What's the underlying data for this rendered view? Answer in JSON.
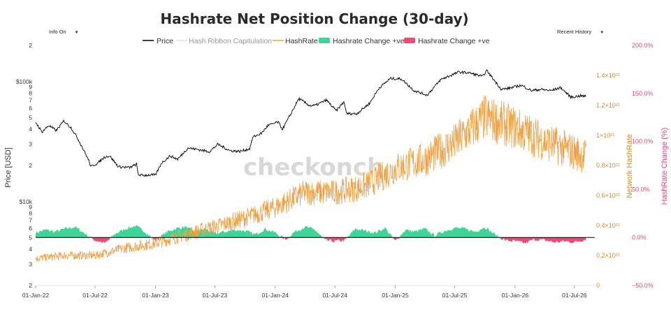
{
  "controls": {
    "info_dropdown": "Info On",
    "history_dropdown": "Recent History",
    "caret": "▼"
  },
  "watermark": "checkonch",
  "colors": {
    "price": "#000000",
    "hashrate": "#f0a040",
    "capitulation": "#f8d0dc",
    "change_pos": "#3dd598",
    "change_neg": "#f04a74",
    "right_axis_1": "#e08a1e",
    "right_axis_2": "#e04a7a"
  },
  "chart_data": {
    "type": "line",
    "title": "Hashrate Net Position Change (30-day)",
    "legend": {
      "placement": "top-center",
      "entries": [
        "Price",
        "Hash Ribbon Capitulation",
        "HashRate",
        "Hashrate Change +ve",
        "Hashrate Change +ve"
      ]
    },
    "x_ticks": [
      "01-Jan-22",
      "01-Jul-22",
      "01-Jan-23",
      "01-Jul-23",
      "01-Jan-24",
      "01-Jul-24",
      "01-Jan-25",
      "01-Jul-25",
      "01-Jan-26",
      "01-Jul-26"
    ],
    "x_range": [
      "2022-01-01",
      "2026-09-01"
    ],
    "y_left": {
      "label": "Price [USD]",
      "scale": "log",
      "range": [
        2000,
        200000
      ],
      "ticks": [
        {
          "v": 2000,
          "t": "2"
        },
        {
          "v": 3000,
          "t": "3"
        },
        {
          "v": 4000,
          "t": "4"
        },
        {
          "v": 5000,
          "t": "5"
        },
        {
          "v": 6000,
          "t": "6"
        },
        {
          "v": 7000,
          "t": "7"
        },
        {
          "v": 8000,
          "t": "8"
        },
        {
          "v": 9000,
          "t": "9"
        },
        {
          "v": 10000,
          "t": "$10k"
        },
        {
          "v": 20000,
          "t": "2"
        },
        {
          "v": 30000,
          "t": "3"
        },
        {
          "v": 40000,
          "t": "4"
        },
        {
          "v": 50000,
          "t": "5"
        },
        {
          "v": 60000,
          "t": "6"
        },
        {
          "v": 70000,
          "t": "7"
        },
        {
          "v": 80000,
          "t": "8"
        },
        {
          "v": 90000,
          "t": "9"
        },
        {
          "v": 100000,
          "t": "$100k"
        },
        {
          "v": 200000,
          "t": "2"
        }
      ]
    },
    "y_right_hashrate": {
      "label": "Network HashRate",
      "range": [
        0,
        1.6
      ],
      "unit": "×10^21",
      "ticks": [
        {
          "v": 0,
          "t": "0"
        },
        {
          "v": 0.2,
          "t": "0.2×10²¹"
        },
        {
          "v": 0.4,
          "t": "0.4×10²¹"
        },
        {
          "v": 0.6,
          "t": "0.6×10²¹"
        },
        {
          "v": 0.8,
          "t": "0.8×10²¹"
        },
        {
          "v": 1.0,
          "t": "1×10²¹"
        },
        {
          "v": 1.2,
          "t": "1.2×10²¹"
        },
        {
          "v": 1.4,
          "t": "1.4×10²¹"
        }
      ]
    },
    "y_right_change": {
      "label": "HashRate Change (%)",
      "range": [
        -50,
        200
      ],
      "ticks": [
        {
          "v": 200,
          "t": "200.0%"
        },
        {
          "v": 150,
          "t": "150.0%"
        },
        {
          "v": 100,
          "t": "100.0%"
        },
        {
          "v": 50,
          "t": "50.0%"
        },
        {
          "v": 0,
          "t": "0.0%"
        },
        {
          "v": -50,
          "t": "−50.0%"
        }
      ]
    },
    "series": [
      {
        "name": "Price",
        "axis": "left",
        "x": [
          "2022-01-01",
          "2022-01-20",
          "2022-02-10",
          "2022-03-05",
          "2022-03-28",
          "2022-04-20",
          "2022-05-08",
          "2022-05-20",
          "2022-06-12",
          "2022-06-18",
          "2022-07-10",
          "2022-07-30",
          "2022-08-15",
          "2022-09-10",
          "2022-10-15",
          "2022-11-05",
          "2022-11-09",
          "2022-11-25",
          "2022-12-20",
          "2023-01-01",
          "2023-01-20",
          "2023-02-15",
          "2023-03-10",
          "2023-04-10",
          "2023-05-15",
          "2023-06-15",
          "2023-07-10",
          "2023-08-17",
          "2023-09-15",
          "2023-10-15",
          "2023-10-25",
          "2023-11-20",
          "2023-12-10",
          "2024-01-10",
          "2024-01-23",
          "2024-02-15",
          "2024-03-13",
          "2024-04-15",
          "2024-05-01",
          "2024-06-05",
          "2024-07-05",
          "2024-07-29",
          "2024-08-05",
          "2024-09-06",
          "2024-10-15",
          "2024-11-12",
          "2024-12-17",
          "2025-01-20",
          "2025-02-27",
          "2025-04-08",
          "2025-05-20",
          "2025-07-14",
          "2025-08-14",
          "2025-09-25",
          "2025-10-06",
          "2025-11-20",
          "2025-12-15",
          "2026-01-20",
          "2026-02-20",
          "2026-03-20",
          "2026-04-20",
          "2026-05-20",
          "2026-06-20",
          "2026-07-20",
          "2026-08-05"
        ],
        "y": [
          46000,
          38000,
          43000,
          39000,
          47000,
          41000,
          34000,
          29500,
          22000,
          19500,
          21000,
          23500,
          24000,
          19500,
          19200,
          20500,
          16800,
          16500,
          16700,
          16600,
          21000,
          24000,
          22500,
          28000,
          27000,
          26000,
          30000,
          26500,
          26200,
          27500,
          34500,
          37000,
          43000,
          46000,
          40000,
          52000,
          72000,
          63000,
          63000,
          70000,
          57000,
          68000,
          54000,
          54000,
          66000,
          88000,
          106000,
          105000,
          84000,
          77000,
          104000,
          120000,
          118000,
          110000,
          124000,
          86000,
          88000,
          93000,
          84000,
          86000,
          84000,
          89000,
          74000,
          76000,
          75000
        ]
      },
      {
        "name": "HashRate",
        "axis": "right_hashrate",
        "x": [
          "2022-01-01",
          "2022-04-01",
          "2022-07-01",
          "2022-10-01",
          "2023-01-01",
          "2023-04-01",
          "2023-07-01",
          "2023-10-01",
          "2024-01-01",
          "2024-04-01",
          "2024-07-01",
          "2024-10-01",
          "2025-01-01",
          "2025-04-01",
          "2025-07-01",
          "2025-10-01",
          "2026-01-01",
          "2026-04-01",
          "2026-08-05"
        ],
        "y": [
          0.18,
          0.2,
          0.2,
          0.25,
          0.28,
          0.34,
          0.39,
          0.45,
          0.52,
          0.62,
          0.62,
          0.66,
          0.78,
          0.84,
          0.95,
          1.12,
          1.05,
          0.96,
          0.86
        ]
      },
      {
        "name": "Hashrate Change +ve",
        "axis": "right_change",
        "x": [
          "2022-01-01",
          "2022-02-01",
          "2022-03-01",
          "2022-04-01",
          "2022-05-01",
          "2022-06-01",
          "2022-07-01",
          "2022-08-01",
          "2022-09-01",
          "2022-10-01",
          "2022-11-01",
          "2022-12-01",
          "2023-01-01",
          "2023-02-01",
          "2023-03-01",
          "2023-04-01",
          "2023-05-01",
          "2023-06-01",
          "2023-07-01",
          "2023-08-01",
          "2023-09-01",
          "2023-10-01",
          "2023-11-01",
          "2023-12-01",
          "2024-01-01",
          "2024-02-01",
          "2024-03-01",
          "2024-04-01",
          "2024-05-01",
          "2024-06-01",
          "2024-07-01",
          "2024-08-01",
          "2024-09-01",
          "2024-10-01",
          "2024-11-01",
          "2024-12-01",
          "2025-01-01",
          "2025-02-01",
          "2025-03-01",
          "2025-04-01",
          "2025-05-01",
          "2025-06-01",
          "2025-07-01",
          "2025-08-01",
          "2025-09-01",
          "2025-10-01",
          "2025-11-01",
          "2025-12-01",
          "2026-01-01",
          "2026-02-01",
          "2026-03-01",
          "2026-04-01",
          "2026-05-01",
          "2026-06-01",
          "2026-07-01",
          "2026-08-05"
        ],
        "y": [
          5,
          8,
          6,
          9,
          11,
          4,
          -3,
          -6,
          4,
          9,
          12,
          6,
          -4,
          5,
          9,
          11,
          6,
          9,
          4,
          6,
          8,
          7,
          3,
          9,
          5,
          -2,
          6,
          11,
          8,
          -3,
          -4,
          -3,
          9,
          7,
          5,
          10,
          -4,
          8,
          6,
          9,
          2,
          7,
          10,
          9,
          6,
          11,
          3,
          -3,
          -4,
          -6,
          -2,
          -3,
          -5,
          -4,
          -5,
          -2
        ]
      }
    ]
  }
}
